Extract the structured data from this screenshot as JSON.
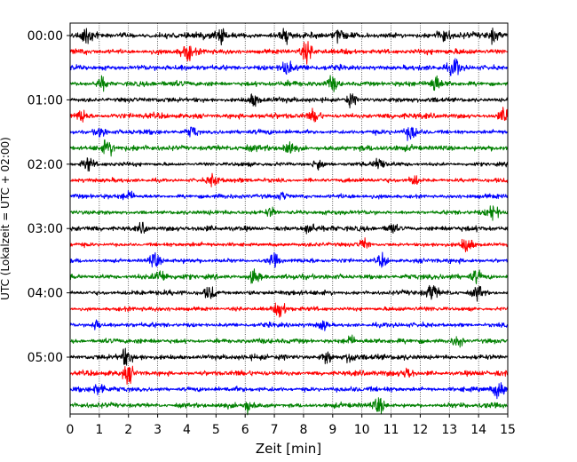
{
  "chart_data": {
    "type": "line",
    "title": "",
    "xlabel": "Zeit  [min]",
    "ylabel": "UTC (Lokalzeit = UTC + 02:00)",
    "xlim": [
      0,
      15
    ],
    "x_ticks": [
      0,
      1,
      2,
      3,
      4,
      5,
      6,
      7,
      8,
      9,
      10,
      11,
      12,
      13,
      14,
      15
    ],
    "y_tick_labels": [
      "00:00",
      "01:00",
      "02:00",
      "03:00",
      "04:00",
      "05:00"
    ],
    "grid": "vertical dotted lines at each minute",
    "row_interval_minutes": 15,
    "row_count": 24,
    "row_start_times": [
      "00:00",
      "00:15",
      "00:30",
      "00:45",
      "01:00",
      "01:15",
      "01:30",
      "01:45",
      "02:00",
      "02:15",
      "02:30",
      "02:45",
      "03:00",
      "03:15",
      "03:30",
      "03:45",
      "04:00",
      "04:15",
      "04:30",
      "04:45",
      "05:00",
      "05:15",
      "05:30",
      "05:45"
    ],
    "color_cycle": [
      "#000000",
      "#ff0000",
      "#0000ff",
      "#008000"
    ],
    "burst_events": [
      {
        "row": 0,
        "x": [
          0.6,
          5.2,
          7.4,
          9.2,
          12.8,
          14.5
        ]
      },
      {
        "row": 1,
        "x": [
          4.0,
          8.1
        ]
      },
      {
        "row": 2,
        "x": [
          7.4,
          13.2
        ]
      },
      {
        "row": 3,
        "x": [
          1.1,
          9.0,
          12.5
        ]
      },
      {
        "row": 4,
        "x": [
          6.3,
          9.6
        ]
      },
      {
        "row": 5,
        "x": [
          0.4,
          8.4,
          14.9
        ]
      },
      {
        "row": 6,
        "x": [
          1.0,
          4.2,
          11.7
        ]
      },
      {
        "row": 7,
        "x": [
          1.3,
          7.5
        ]
      },
      {
        "row": 8,
        "x": [
          0.6,
          8.5,
          10.6
        ]
      },
      {
        "row": 9,
        "x": [
          4.9,
          11.8
        ]
      },
      {
        "row": 10,
        "x": [
          2.0,
          7.3
        ]
      },
      {
        "row": 11,
        "x": [
          6.9,
          14.5
        ]
      },
      {
        "row": 12,
        "x": [
          2.5,
          8.2,
          11.0
        ]
      },
      {
        "row": 13,
        "x": [
          10.1,
          13.6
        ]
      },
      {
        "row": 14,
        "x": [
          2.9,
          7.0,
          10.7
        ]
      },
      {
        "row": 15,
        "x": [
          3.1,
          6.3,
          13.9
        ]
      },
      {
        "row": 16,
        "x": [
          4.8,
          12.4,
          14.0
        ]
      },
      {
        "row": 17,
        "x": [
          7.2
        ]
      },
      {
        "row": 18,
        "x": [
          0.9,
          8.7
        ]
      },
      {
        "row": 19,
        "x": [
          9.6,
          13.3
        ]
      },
      {
        "row": 20,
        "x": [
          1.9,
          8.8,
          9.6
        ]
      },
      {
        "row": 21,
        "x": [
          11.6,
          2.0
        ]
      },
      {
        "row": 22,
        "x": [
          1.0,
          14.7
        ]
      },
      {
        "row": 23,
        "x": [
          10.6,
          6.1
        ]
      }
    ]
  }
}
